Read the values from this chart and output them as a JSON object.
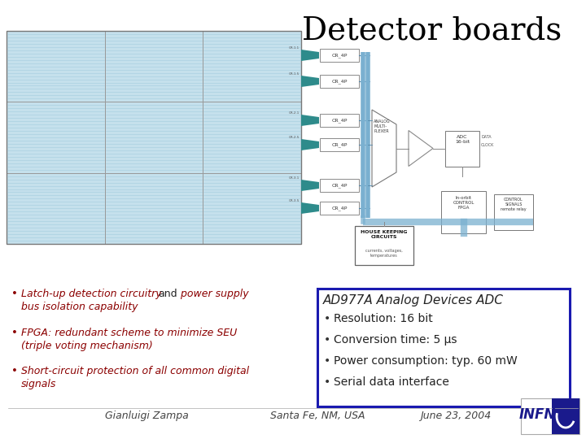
{
  "title": "Detector boards",
  "title_fontsize": 28,
  "title_color": "#000000",
  "background_color": "#ffffff",
  "bullet_color": "#8b0000",
  "adc_box_title": "AD977A Analog Devices ADC",
  "adc_box_color": "#1a1ab0",
  "adc_box_items": [
    "Resolution: 16 bit",
    "Conversion time: 5 μs",
    "Power consumption: typ. 60 mW",
    "Serial data interface"
  ],
  "footer_author": "Gianluigi Zampa",
  "footer_location": "Santa Fe, NM, USA",
  "footer_date": "June 23, 2004",
  "footer_color": "#444444",
  "footer_fontsize": 9,
  "housekeeping_label": "HOUSE KEEPING\nCIRCUITS",
  "teal_color": "#2e8b8b",
  "panel_bg": "#c5e0ec",
  "panel_stripe": "#a8cfe0",
  "bus_color": "#7ab0d0"
}
